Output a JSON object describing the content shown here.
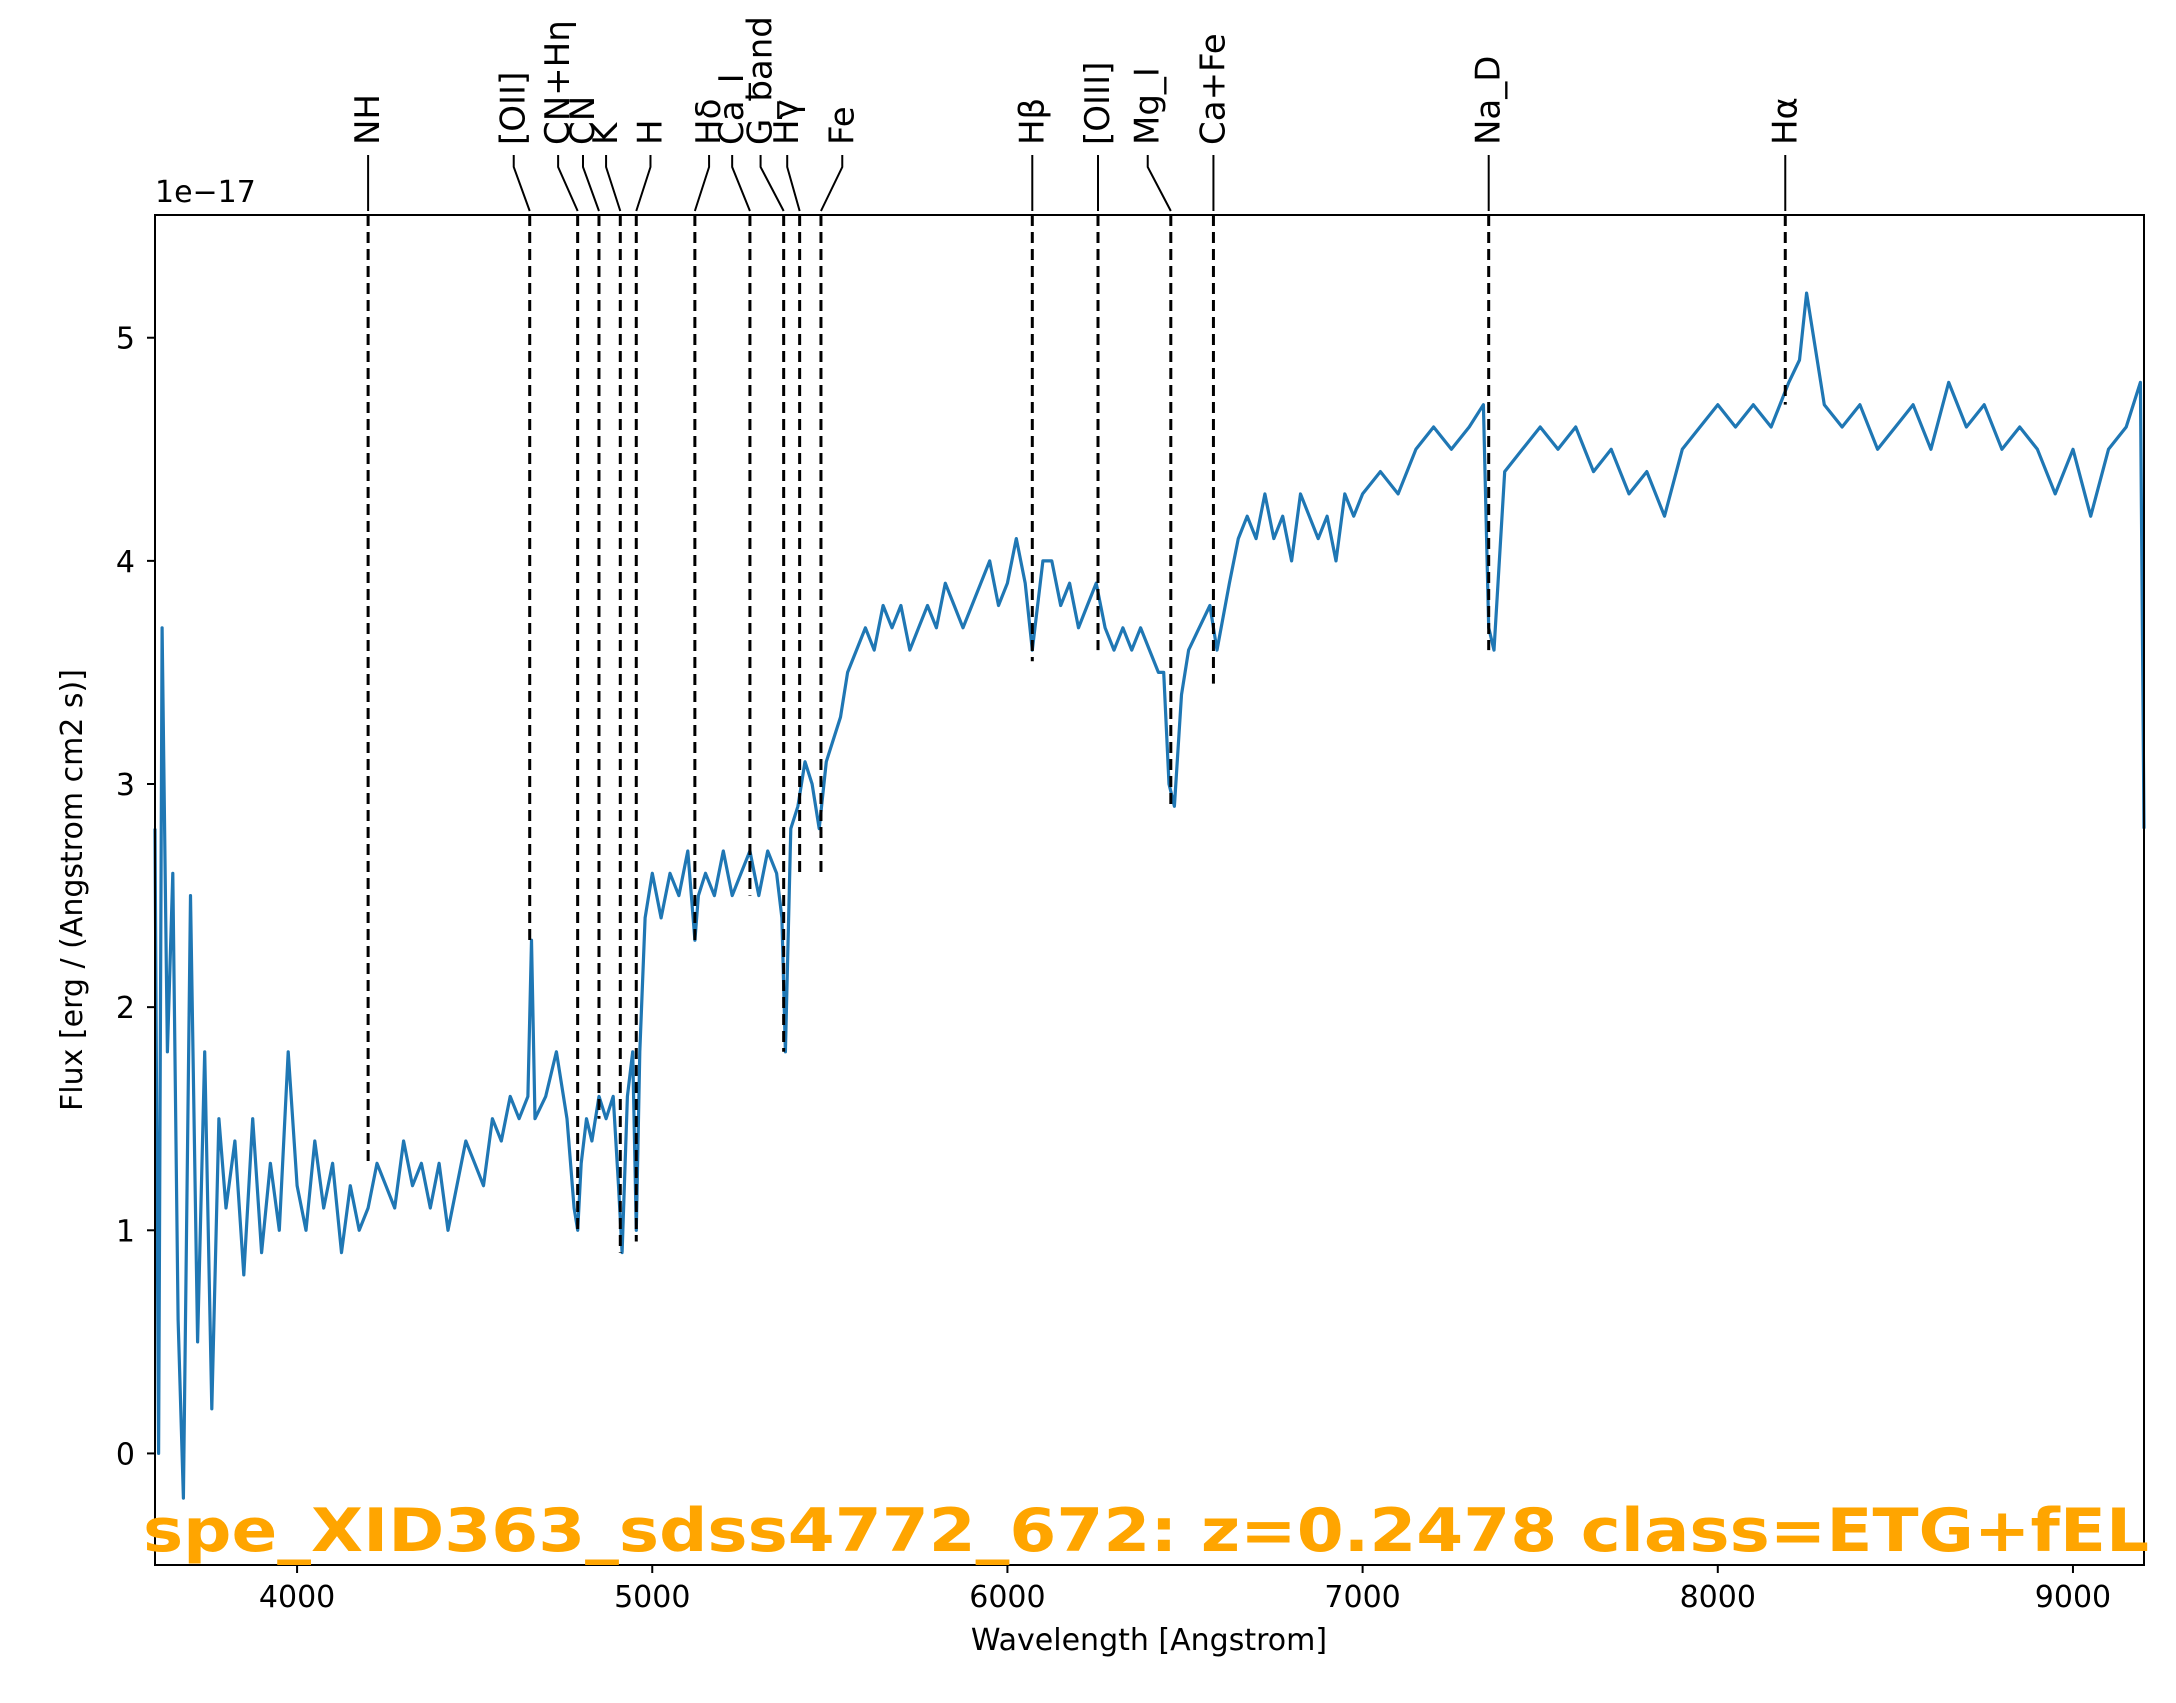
{
  "chart_data": {
    "type": "line",
    "title": "",
    "xlabel": "Wavelength [Angstrom]",
    "ylabel": "Flux [erg / (Angstrom cm2 s)]",
    "y_offset_label": "1e−17",
    "xlim": [
      3600,
      9200
    ],
    "ylim": [
      -0.5,
      5.55
    ],
    "x_ticks": [
      4000,
      5000,
      6000,
      7000,
      8000,
      9000
    ],
    "y_ticks": [
      0,
      1,
      2,
      3,
      4,
      5
    ],
    "grid": false,
    "legend": "none",
    "line_color": "#1f77b4",
    "annotation_color": "#FFA500",
    "annotation": "spe_XID363_sdss4772_672: z=0.2478 class=ETG+fEL",
    "series": [
      {
        "x": [
          3600,
          3610,
          3620,
          3635,
          3650,
          3665,
          3680,
          3700,
          3720,
          3740,
          3760,
          3780,
          3800,
          3825,
          3850,
          3875,
          3900,
          3925,
          3950,
          3975,
          4000,
          4025,
          4050,
          4075,
          4100,
          4125,
          4150,
          4175,
          4200,
          4225,
          4250,
          4275,
          4300,
          4325,
          4350,
          4375,
          4400,
          4425,
          4450,
          4475,
          4500,
          4525,
          4550,
          4575,
          4600,
          4625,
          4650,
          4660,
          4670,
          4700,
          4730,
          4760,
          4780,
          4790,
          4800,
          4815,
          4830,
          4850,
          4870,
          4890,
          4905,
          4915,
          4930,
          4945,
          4955,
          4965,
          4980,
          5000,
          5025,
          5050,
          5075,
          5100,
          5120,
          5130,
          5150,
          5175,
          5200,
          5225,
          5250,
          5275,
          5300,
          5325,
          5350,
          5365,
          5375,
          5390,
          5410,
          5430,
          5450,
          5470,
          5490,
          5510,
          5530,
          5550,
          5575,
          5600,
          5625,
          5650,
          5675,
          5700,
          5725,
          5750,
          5775,
          5800,
          5825,
          5850,
          5875,
          5900,
          5925,
          5950,
          5975,
          6000,
          6025,
          6050,
          6070,
          6085,
          6100,
          6125,
          6150,
          6175,
          6200,
          6225,
          6250,
          6275,
          6300,
          6325,
          6350,
          6375,
          6400,
          6425,
          6440,
          6455,
          6470,
          6490,
          6510,
          6540,
          6570,
          6590,
          6625,
          6650,
          6675,
          6700,
          6725,
          6750,
          6775,
          6800,
          6825,
          6850,
          6875,
          6900,
          6925,
          6950,
          6975,
          7000,
          7050,
          7100,
          7150,
          7200,
          7250,
          7300,
          7340,
          7355,
          7370,
          7400,
          7450,
          7500,
          7550,
          7600,
          7650,
          7700,
          7750,
          7800,
          7850,
          7900,
          7950,
          8000,
          8050,
          8100,
          8150,
          8200,
          8230,
          8250,
          8300,
          8350,
          8400,
          8450,
          8500,
          8550,
          8600,
          8650,
          8700,
          8750,
          8800,
          8850,
          8900,
          8950,
          9000,
          9050,
          9100,
          9150,
          9190,
          9200
        ],
        "y": [
          2.8,
          0.0,
          3.7,
          1.8,
          2.6,
          0.6,
          -0.2,
          2.5,
          0.5,
          1.8,
          0.2,
          1.5,
          1.1,
          1.4,
          0.8,
          1.5,
          0.9,
          1.3,
          1.0,
          1.8,
          1.2,
          1.0,
          1.4,
          1.1,
          1.3,
          0.9,
          1.2,
          1.0,
          1.1,
          1.3,
          1.2,
          1.1,
          1.4,
          1.2,
          1.3,
          1.1,
          1.3,
          1.0,
          1.2,
          1.4,
          1.3,
          1.2,
          1.5,
          1.4,
          1.6,
          1.5,
          1.6,
          2.3,
          1.5,
          1.6,
          1.8,
          1.5,
          1.1,
          1.0,
          1.3,
          1.5,
          1.4,
          1.6,
          1.5,
          1.6,
          1.2,
          0.9,
          1.6,
          1.8,
          1.0,
          1.8,
          2.4,
          2.6,
          2.4,
          2.6,
          2.5,
          2.7,
          2.3,
          2.5,
          2.6,
          2.5,
          2.7,
          2.5,
          2.6,
          2.7,
          2.5,
          2.7,
          2.6,
          2.4,
          1.8,
          2.8,
          2.9,
          3.1,
          3.0,
          2.8,
          3.1,
          3.2,
          3.3,
          3.5,
          3.6,
          3.7,
          3.6,
          3.8,
          3.7,
          3.8,
          3.6,
          3.7,
          3.8,
          3.7,
          3.9,
          3.8,
          3.7,
          3.8,
          3.9,
          4.0,
          3.8,
          3.9,
          4.1,
          3.9,
          3.6,
          3.8,
          4.0,
          4.0,
          3.8,
          3.9,
          3.7,
          3.8,
          3.9,
          3.7,
          3.6,
          3.7,
          3.6,
          3.7,
          3.6,
          3.5,
          3.5,
          3.0,
          2.9,
          3.4,
          3.6,
          3.7,
          3.8,
          3.6,
          3.9,
          4.1,
          4.2,
          4.1,
          4.3,
          4.1,
          4.2,
          4.0,
          4.3,
          4.2,
          4.1,
          4.2,
          4.0,
          4.3,
          4.2,
          4.3,
          4.4,
          4.3,
          4.5,
          4.6,
          4.5,
          4.6,
          4.7,
          3.7,
          3.6,
          4.4,
          4.5,
          4.6,
          4.5,
          4.6,
          4.4,
          4.5,
          4.3,
          4.4,
          4.2,
          4.5,
          4.6,
          4.7,
          4.6,
          4.7,
          4.6,
          4.8,
          4.9,
          5.2,
          4.7,
          4.6,
          4.7,
          4.5,
          4.6,
          4.7,
          4.5,
          4.8,
          4.6,
          4.7,
          4.5,
          4.6,
          4.5,
          4.3,
          4.5,
          4.2,
          4.5,
          4.6,
          4.8,
          2.8
        ]
      }
    ],
    "lines": [
      {
        "label": "NH",
        "x": 4200,
        "label_x": 4200,
        "y_bottom": 1.3
      },
      {
        "label": "[OII]",
        "x": 4655,
        "label_x": 4610,
        "y_bottom": 2.3
      },
      {
        "label": "CN+Hη",
        "x": 4790,
        "label_x": 4735,
        "y_bottom": 1.0
      },
      {
        "label": "CN",
        "x": 4850,
        "label_x": 4805,
        "y_bottom": 1.5
      },
      {
        "label": "K",
        "x": 4910,
        "label_x": 4870,
        "y_bottom": 0.9
      },
      {
        "label": "H",
        "x": 4955,
        "label_x": 4995,
        "y_bottom": 0.95
      },
      {
        "label": "Hδ",
        "x": 5120,
        "label_x": 5160,
        "y_bottom": 2.3
      },
      {
        "label": "Ca_I",
        "x": 5275,
        "label_x": 5225,
        "y_bottom": 2.5
      },
      {
        "label": "G_band",
        "x": 5370,
        "label_x": 5305,
        "y_bottom": 1.8
      },
      {
        "label": "Hγ",
        "x": 5415,
        "label_x": 5380,
        "y_bottom": 2.6
      },
      {
        "label": "Fe",
        "x": 5475,
        "label_x": 5535,
        "y_bottom": 2.6
      },
      {
        "label": "Hβ",
        "x": 6070,
        "label_x": 6070,
        "y_bottom": 3.55
      },
      {
        "label": "[OIII]",
        "x": 6255,
        "label_x": 6255,
        "y_bottom": 3.6
      },
      {
        "label": "Mg_I",
        "x": 6460,
        "label_x": 6395,
        "y_bottom": 2.9
      },
      {
        "label": "Ca+Fe",
        "x": 6580,
        "label_x": 6580,
        "y_bottom": 3.45
      },
      {
        "label": "Na_D",
        "x": 7355,
        "label_x": 7355,
        "y_bottom": 3.6
      },
      {
        "label": "Hα",
        "x": 8190,
        "label_x": 8190,
        "y_bottom": 4.7
      }
    ]
  }
}
